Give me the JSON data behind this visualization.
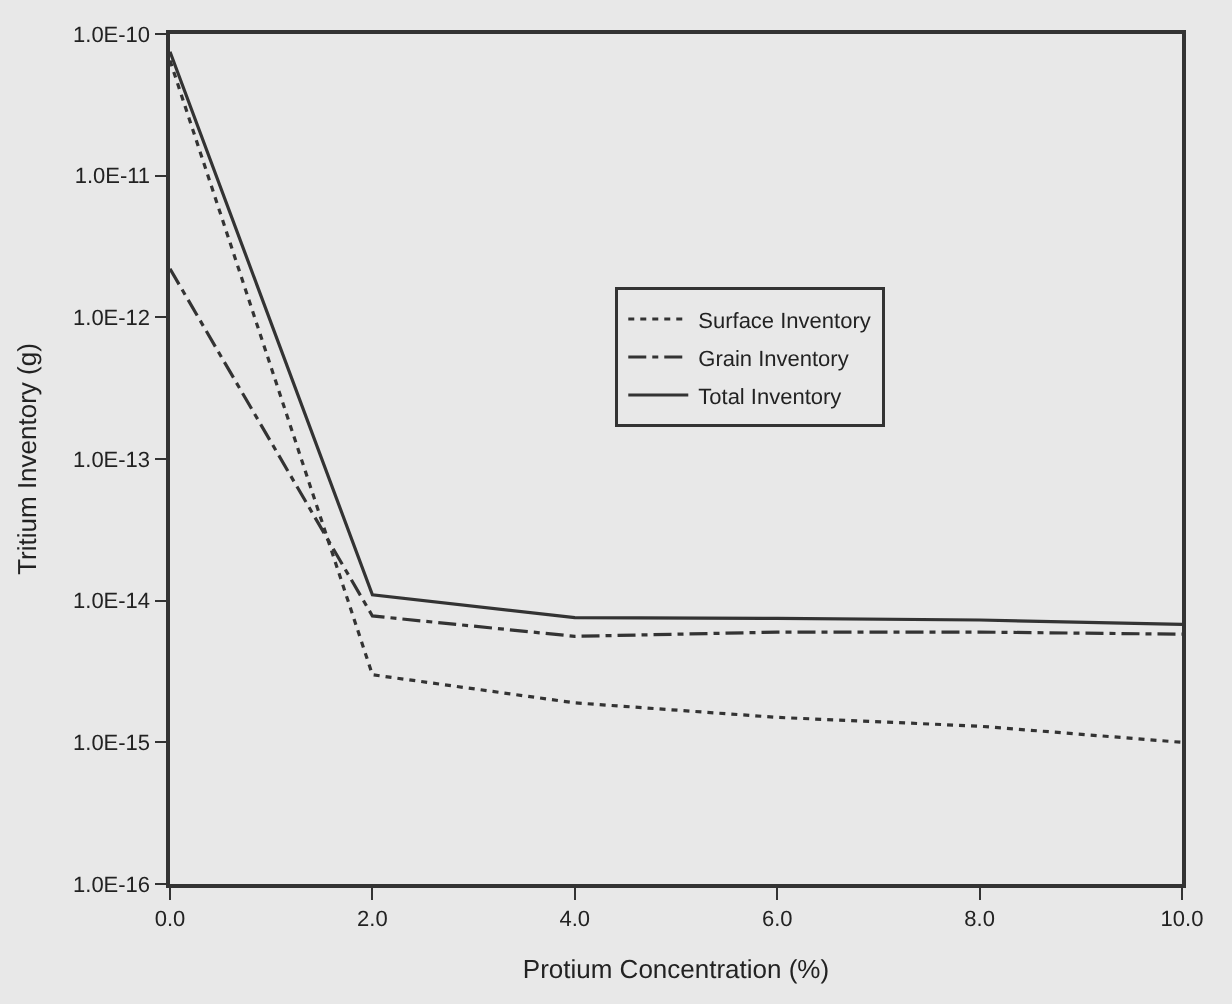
{
  "chart_data": {
    "type": "line",
    "xlabel": "Protium Concentration (%)",
    "ylabel": "Tritium Inventory (g)",
    "x": [
      0,
      2,
      4,
      6,
      8,
      10
    ],
    "series": [
      {
        "name": "Surface Inventory",
        "color": "#333333",
        "line_style": "dotted",
        "values": [
          6.5e-11,
          3e-15,
          1.9e-15,
          1.5e-15,
          1.3e-15,
          1e-15
        ]
      },
      {
        "name": "Grain Inventory",
        "color": "#333333",
        "line_style": "dashdot",
        "values": [
          2.2e-12,
          7.8e-15,
          5.6e-15,
          6e-15,
          6e-15,
          5.8e-15
        ]
      },
      {
        "name": "Total Inventory",
        "color": "#333333",
        "line_style": "solid",
        "values": [
          7.5e-11,
          1.1e-14,
          7.6e-15,
          7.5e-15,
          7.3e-15,
          6.8e-15
        ]
      }
    ],
    "log": "y",
    "xlim": [
      0,
      10
    ],
    "ylim": [
      1e-16,
      1e-10
    ],
    "xticks": [
      {
        "value": 0,
        "label": "0.0"
      },
      {
        "value": 2,
        "label": "2.0"
      },
      {
        "value": 4,
        "label": "4.0"
      },
      {
        "value": 6,
        "label": "6.0"
      },
      {
        "value": 8,
        "label": "8.0"
      },
      {
        "value": 10,
        "label": "10.0"
      }
    ],
    "yticks": [
      {
        "value": 1e-16,
        "label": "1.0E-16"
      },
      {
        "value": 1e-15,
        "label": "1.0E-15"
      },
      {
        "value": 1e-14,
        "label": "1.0E-14"
      },
      {
        "value": 1e-13,
        "label": "1.0E-13"
      },
      {
        "value": 1e-12,
        "label": "1.0E-12"
      },
      {
        "value": 1e-11,
        "label": "1.0E-11"
      },
      {
        "value": 1e-10,
        "label": "1.0E-10"
      }
    ],
    "legend": "center",
    "grid": false,
    "marker": "none"
  }
}
